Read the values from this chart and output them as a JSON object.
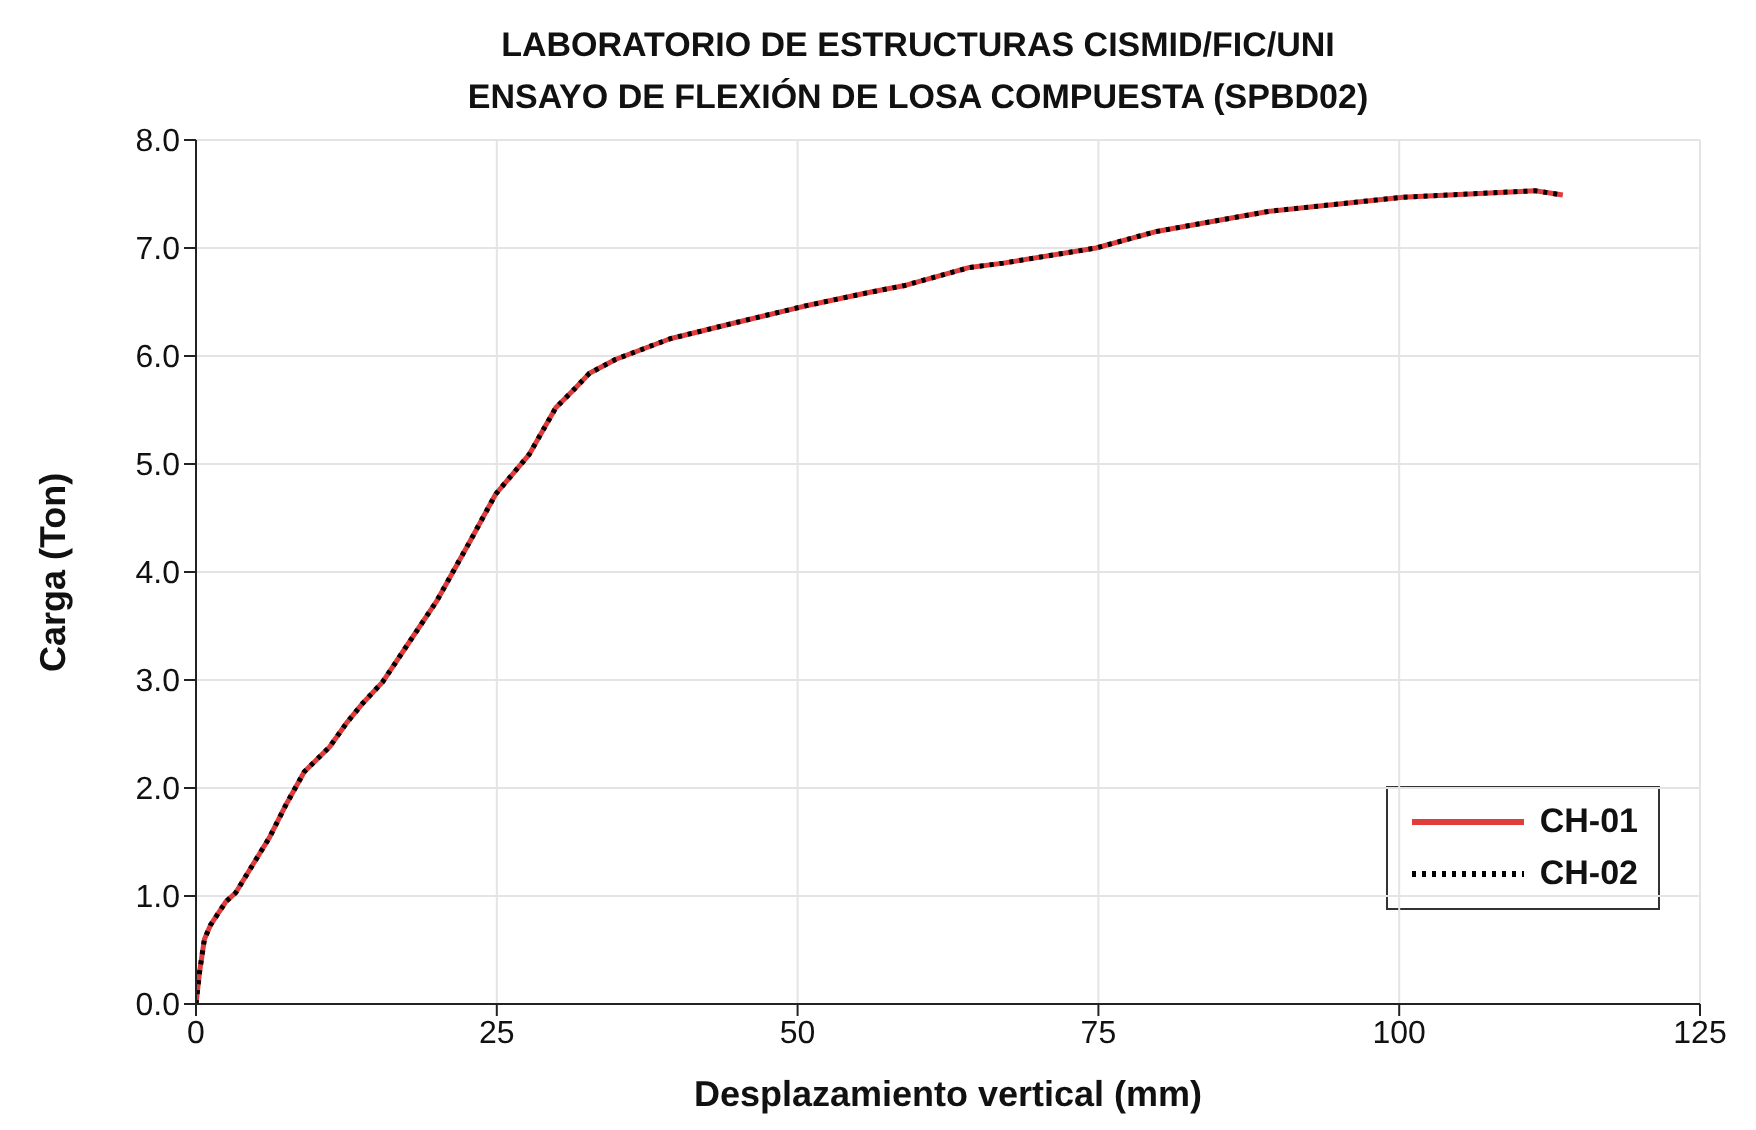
{
  "chart_data": {
    "type": "line",
    "title": "LABORATORIO DE ESTRUCTURAS CISMID/FIC/UNI",
    "subtitle": "ENSAYO DE FLEXIÓN DE LOSA COMPUESTA (SPBD02)",
    "xlabel": "Desplazamiento vertical (mm)",
    "ylabel": "Carga (Ton)",
    "x": [
      0,
      0.3,
      0.7,
      1.2,
      2.5,
      3.3,
      4.5,
      6.1,
      7.5,
      9.0,
      11.1,
      12.5,
      13.9,
      15.5,
      17.3,
      20.0,
      22.8,
      24.9,
      27.7,
      29.9,
      31.5,
      32.7,
      34.9,
      39.4,
      44.9,
      50.5,
      56.0,
      58.8,
      64.3,
      67.1,
      74.8,
      79.7,
      89.2,
      100.3,
      111.3,
      113.6
    ],
    "series": [
      {
        "name": "CH-01",
        "color": "#e03c3c",
        "line_style": "solid",
        "values": [
          0,
          0.3,
          0.6,
          0.73,
          0.95,
          1.03,
          1.25,
          1.54,
          1.85,
          2.15,
          2.38,
          2.6,
          2.79,
          2.98,
          3.28,
          3.73,
          4.29,
          4.72,
          5.09,
          5.52,
          5.7,
          5.84,
          5.97,
          6.16,
          6.31,
          6.46,
          6.59,
          6.65,
          6.82,
          6.86,
          7.0,
          7.15,
          7.34,
          7.47,
          7.53,
          7.49
        ]
      },
      {
        "name": "CH-02",
        "color": "#000000",
        "line_style": "dotted",
        "values": [
          0,
          0.3,
          0.6,
          0.73,
          0.95,
          1.03,
          1.25,
          1.54,
          1.85,
          2.15,
          2.38,
          2.6,
          2.79,
          2.98,
          3.28,
          3.73,
          4.29,
          4.72,
          5.09,
          5.52,
          5.7,
          5.84,
          5.97,
          6.16,
          6.31,
          6.46,
          6.59,
          6.65,
          6.82,
          6.86,
          7.0,
          7.15,
          7.34,
          7.47,
          7.53,
          7.49
        ]
      }
    ],
    "xlim": [
      0,
      125
    ],
    "xticks": [
      0,
      25,
      50,
      75,
      100,
      125
    ],
    "ylim": [
      0,
      8
    ],
    "yticks": [
      {
        "value": 0,
        "label": "0.0"
      },
      {
        "value": 1,
        "label": "1.0"
      },
      {
        "value": 2,
        "label": "2.0"
      },
      {
        "value": 3,
        "label": "3.0"
      },
      {
        "value": 4,
        "label": "4.0"
      },
      {
        "value": 5,
        "label": "5.0"
      },
      {
        "value": 6,
        "label": "6.0"
      },
      {
        "value": 7,
        "label": "7.0"
      },
      {
        "value": 8,
        "label": "8.0"
      }
    ],
    "grid": true,
    "legend": "bottom right",
    "marker": "none"
  }
}
